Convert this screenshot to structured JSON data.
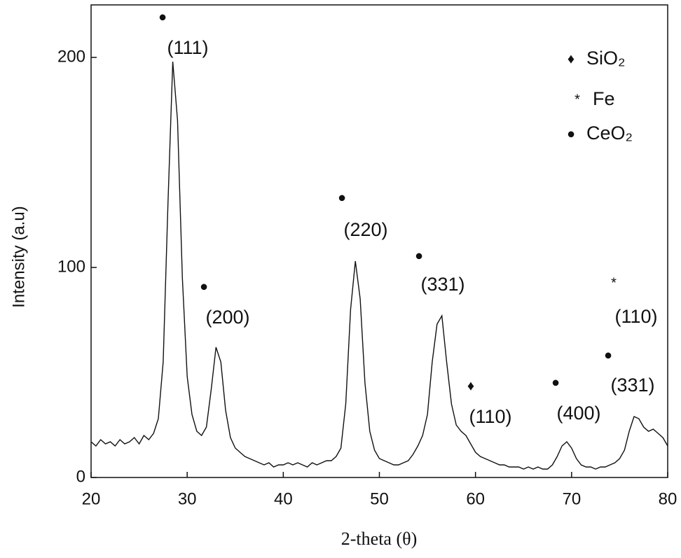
{
  "chart_data": {
    "type": "line",
    "xlabel": "2-theta (θ)",
    "ylabel": "Intensity (a.u)",
    "xlim": [
      20,
      80
    ],
    "xticks": [
      20,
      30,
      40,
      50,
      60,
      70,
      80
    ],
    "ylim": [
      0,
      225
    ],
    "yticks": [
      0,
      100,
      200
    ],
    "color": "#111111",
    "x": [
      20,
      20.5,
      21,
      21.5,
      22,
      22.5,
      23,
      23.5,
      24,
      24.5,
      25,
      25.5,
      26,
      26.5,
      27,
      27.5,
      28,
      28.5,
      29,
      29.5,
      30,
      30.5,
      31,
      31.5,
      32,
      32.5,
      33,
      33.5,
      34,
      34.5,
      35,
      35.5,
      36,
      36.5,
      37,
      37.5,
      38,
      38.5,
      39,
      39.5,
      40,
      40.5,
      41,
      41.5,
      42,
      42.5,
      43,
      43.5,
      44,
      44.5,
      45,
      45.5,
      46,
      46.5,
      47,
      47.5,
      48,
      48.5,
      49,
      49.5,
      50,
      50.5,
      51,
      51.5,
      52,
      52.5,
      53,
      53.5,
      54,
      54.5,
      55,
      55.5,
      56,
      56.5,
      57,
      57.5,
      58,
      58.5,
      59,
      59.5,
      60,
      60.5,
      61,
      61.5,
      62,
      62.5,
      63,
      63.5,
      64,
      64.5,
      65,
      65.5,
      66,
      66.5,
      67,
      67.5,
      68,
      68.5,
      69,
      69.5,
      70,
      70.5,
      71,
      71.5,
      72,
      72.5,
      73,
      73.5,
      74,
      74.5,
      75,
      75.5,
      76,
      76.5,
      77,
      77.5,
      78,
      78.5,
      79,
      79.5,
      80
    ],
    "values": [
      17,
      15,
      18,
      16,
      17,
      15,
      18,
      16,
      17,
      19,
      16,
      20,
      18,
      21,
      28,
      55,
      130,
      198,
      170,
      95,
      48,
      30,
      22,
      20,
      24,
      42,
      62,
      55,
      32,
      19,
      14,
      12,
      10,
      9,
      8,
      7,
      6,
      7,
      5,
      6,
      6,
      7,
      6,
      7,
      6,
      5,
      7,
      6,
      7,
      8,
      8,
      10,
      14,
      35,
      80,
      103,
      85,
      45,
      22,
      13,
      9,
      8,
      7,
      6,
      6,
      7,
      8,
      11,
      15,
      20,
      30,
      55,
      73,
      77,
      55,
      35,
      25,
      22,
      20,
      16,
      12,
      10,
      9,
      8,
      7,
      6,
      6,
      5,
      5,
      5,
      4,
      5,
      4,
      5,
      4,
      4,
      6,
      10,
      15,
      17,
      14,
      9,
      6,
      5,
      5,
      4,
      5,
      5,
      6,
      7,
      9,
      13,
      22,
      29,
      28,
      24,
      22,
      23,
      21,
      19,
      15
    ],
    "annotations": [
      {
        "marker": "●",
        "label": "(111)"
      },
      {
        "marker": "●",
        "label": "(200)"
      },
      {
        "marker": "●",
        "label": "(220)"
      },
      {
        "marker": "●",
        "label": "(331)"
      },
      {
        "marker": "♦",
        "label": "(110)"
      },
      {
        "marker": "●",
        "label": "(400)"
      },
      {
        "marker": "*",
        "label": "(110)"
      },
      {
        "marker": "●",
        "label": "(331)"
      }
    ],
    "legend": [
      {
        "marker": "♦",
        "name": "SiO₂"
      },
      {
        "marker": "*",
        "name": "Fe"
      },
      {
        "marker": "●",
        "name": "CeO₂"
      }
    ]
  }
}
